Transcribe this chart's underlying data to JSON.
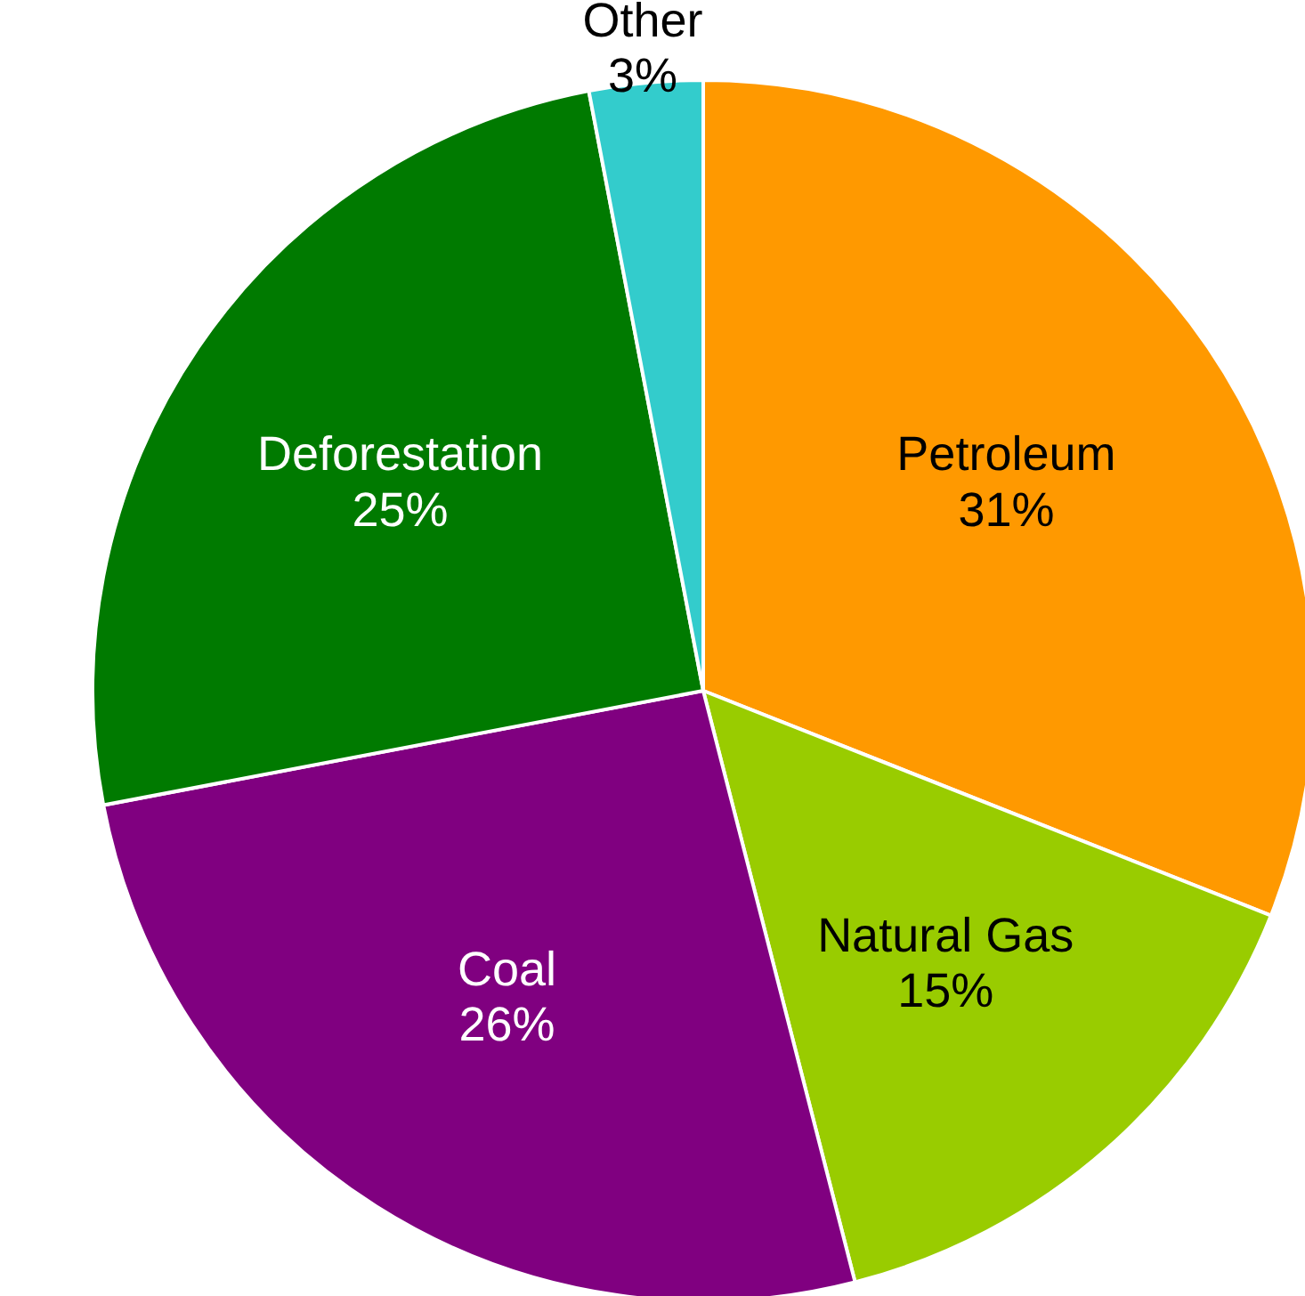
{
  "chart_data": {
    "type": "pie",
    "categories": [
      "Petroleum",
      "Natural Gas",
      "Coal",
      "Deforestation",
      "Other"
    ],
    "values": [
      31,
      15,
      26,
      25,
      3
    ],
    "colors": [
      "#ff9900",
      "#99cc00",
      "#800080",
      "#007a00",
      "#33cccc"
    ],
    "value_labels": [
      "31%",
      "15%",
      "26%",
      "25%",
      "3%"
    ],
    "legend": false
  }
}
